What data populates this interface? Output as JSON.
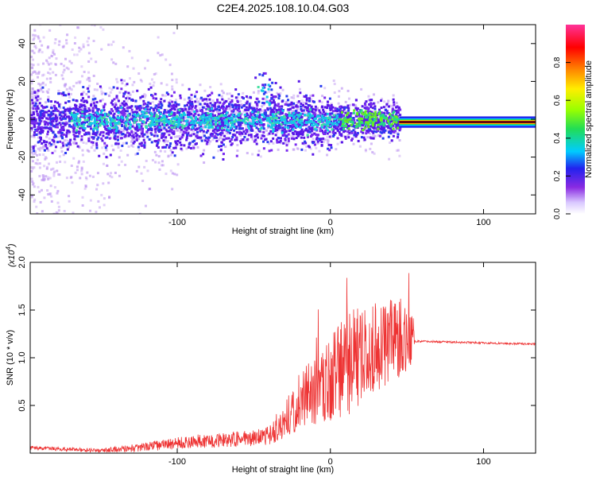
{
  "title": "C2E4.2025.108.10.04.G03",
  "chart_data": [
    {
      "type": "heatmap",
      "panel": "top",
      "xlabel": "Height of straight line (km)",
      "ylabel": "Frequency (Hz)",
      "xlim": [
        -196,
        134
      ],
      "ylim": [
        -50,
        50
      ],
      "x_ticks": [
        -100,
        0,
        100
      ],
      "y_ticks": [
        -40,
        -20,
        0,
        20,
        40
      ],
      "colorbar": {
        "label": "Normalized spectral amplitude",
        "range": [
          0,
          1
        ],
        "ticks": [
          0.0,
          0.2,
          0.4,
          0.6,
          0.8
        ]
      },
      "noisy_region_x": [
        -196,
        45
      ],
      "clean_region_x": [
        45,
        134
      ],
      "spike": {
        "x": -44,
        "frequency": 25
      },
      "steady_line_frequency": -1.5
    },
    {
      "type": "line",
      "panel": "bottom",
      "xlabel": "Height of straight line (km)",
      "ylabel": "SNR (10 * v/v)",
      "y_scale_label": "(x10",
      "y_scale_exp": "4",
      "xlim": [
        -196,
        134
      ],
      "ylim": [
        0,
        2.0
      ],
      "x_ticks": [
        -100,
        0,
        100
      ],
      "y_ticks": [
        0.5,
        1.0,
        1.5,
        2.0
      ],
      "color": "#ee3333",
      "profile": [
        {
          "x": -196,
          "y": 0.05,
          "noise": 0.02
        },
        {
          "x": -150,
          "y": 0.02,
          "noise": 0.02
        },
        {
          "x": -120,
          "y": 0.05,
          "noise": 0.05
        },
        {
          "x": -90,
          "y": 0.1,
          "noise": 0.07
        },
        {
          "x": -60,
          "y": 0.12,
          "noise": 0.08
        },
        {
          "x": -40,
          "y": 0.15,
          "noise": 0.1
        },
        {
          "x": -30,
          "y": 0.3,
          "noise": 0.2
        },
        {
          "x": -20,
          "y": 0.45,
          "noise": 0.3
        },
        {
          "x": -5,
          "y": 0.6,
          "noise": 0.4
        },
        {
          "x": 10,
          "y": 0.75,
          "noise": 0.55
        },
        {
          "x": 25,
          "y": 0.95,
          "noise": 0.5
        },
        {
          "x": 40,
          "y": 1.05,
          "noise": 0.45
        },
        {
          "x": 54,
          "y": 1.15,
          "noise": 0.35
        },
        {
          "x": 55,
          "y": 1.17,
          "noise": 0.01
        },
        {
          "x": 134,
          "y": 1.14,
          "noise": 0.01
        }
      ]
    }
  ]
}
